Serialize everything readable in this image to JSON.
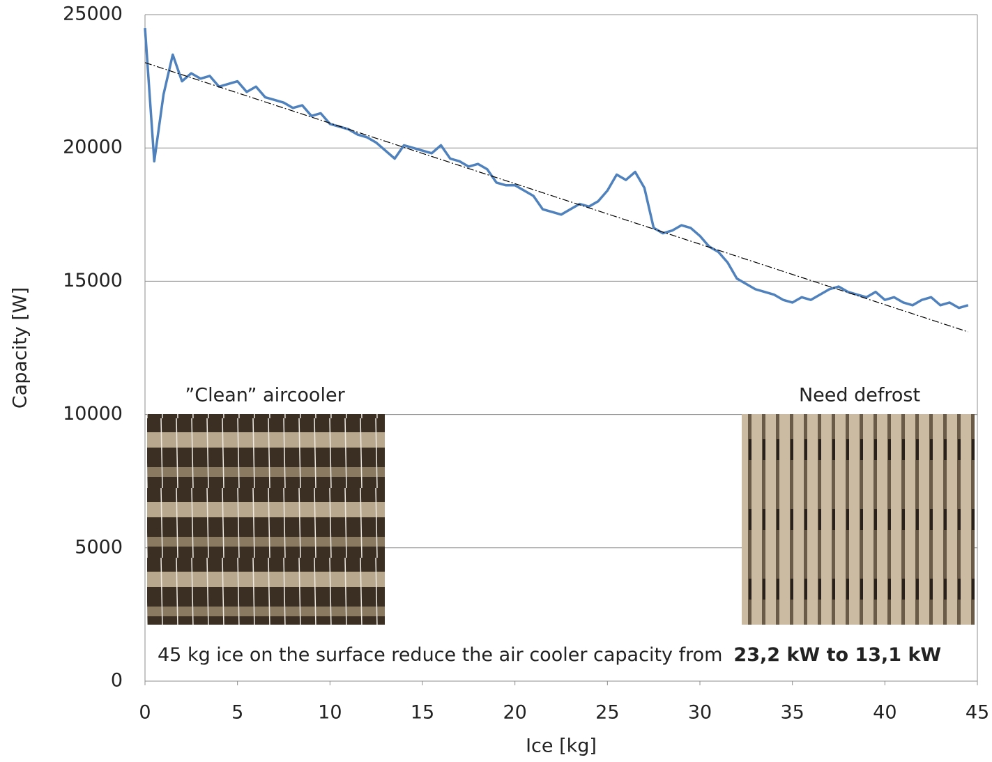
{
  "chart_data": {
    "type": "line",
    "x_label": "Ice [kg]",
    "y_label": "Capacity [W]",
    "xlim": [
      0,
      45
    ],
    "xticks": [
      0,
      5,
      10,
      15,
      20,
      25,
      30,
      35,
      40,
      45
    ],
    "ylim": [
      0,
      25000
    ],
    "yticks": [
      0,
      5000,
      10000,
      15000,
      20000,
      25000
    ],
    "grid": true,
    "series": [
      {
        "color": "#4f81bd",
        "x": [
          0,
          0.5,
          1,
          1.5,
          2,
          2.5,
          3,
          3.5,
          4,
          4.5,
          5,
          5.5,
          6,
          6.5,
          7,
          7.5,
          8,
          8.5,
          9,
          9.5,
          10,
          10.5,
          11,
          11.5,
          12,
          12.5,
          13,
          13.5,
          14,
          14.5,
          15,
          15.5,
          16,
          16.5,
          17,
          17.5,
          18,
          18.5,
          19,
          19.5,
          20,
          20.5,
          21,
          21.5,
          22,
          22.5,
          23,
          23.5,
          24,
          24.5,
          25,
          25.5,
          26,
          26.5,
          27,
          27.5,
          28,
          28.5,
          29,
          29.5,
          30,
          30.5,
          31,
          31.5,
          32,
          32.5,
          33,
          33.5,
          34,
          34.5,
          35,
          35.5,
          36,
          36.5,
          37,
          37.5,
          38,
          38.5,
          39,
          39.5,
          40,
          40.5,
          41,
          41.5,
          42,
          42.5,
          43,
          43.5,
          44,
          44.5
        ],
        "values": [
          24500,
          19500,
          22000,
          23500,
          22500,
          22800,
          22600,
          22700,
          22300,
          22400,
          22500,
          22100,
          22300,
          21900,
          21800,
          21700,
          21500,
          21600,
          21200,
          21300,
          20900,
          20800,
          20700,
          20500,
          20400,
          20200,
          19900,
          19600,
          20100,
          20000,
          19900,
          19800,
          20100,
          19600,
          19500,
          19300,
          19400,
          19200,
          18700,
          18600,
          18600,
          18400,
          18200,
          17700,
          17600,
          17500,
          17700,
          17900,
          17800,
          18000,
          18400,
          19000,
          18800,
          19100,
          18500,
          17000,
          16800,
          16900,
          17100,
          17000,
          16700,
          16300,
          16100,
          15700,
          15100,
          14900,
          14700,
          14600,
          14500,
          14300,
          14200,
          14400,
          14300,
          14500,
          14700,
          14800,
          14600,
          14500,
          14400,
          14600,
          14300,
          14400,
          14200,
          14100,
          14300,
          14400,
          14100,
          14200,
          14000,
          14100
        ]
      },
      {
        "color": "#000000",
        "dashed": true,
        "x": [
          0,
          44.5
        ],
        "values": [
          23200,
          13100
        ]
      }
    ],
    "annotations": [
      "”Clean” aircooler",
      "Need defrost"
    ],
    "note": {
      "text": "45 kg ice on the surface reduce the air cooler capacity from",
      "bold": "23,2 kW to 13,1 kW"
    }
  }
}
